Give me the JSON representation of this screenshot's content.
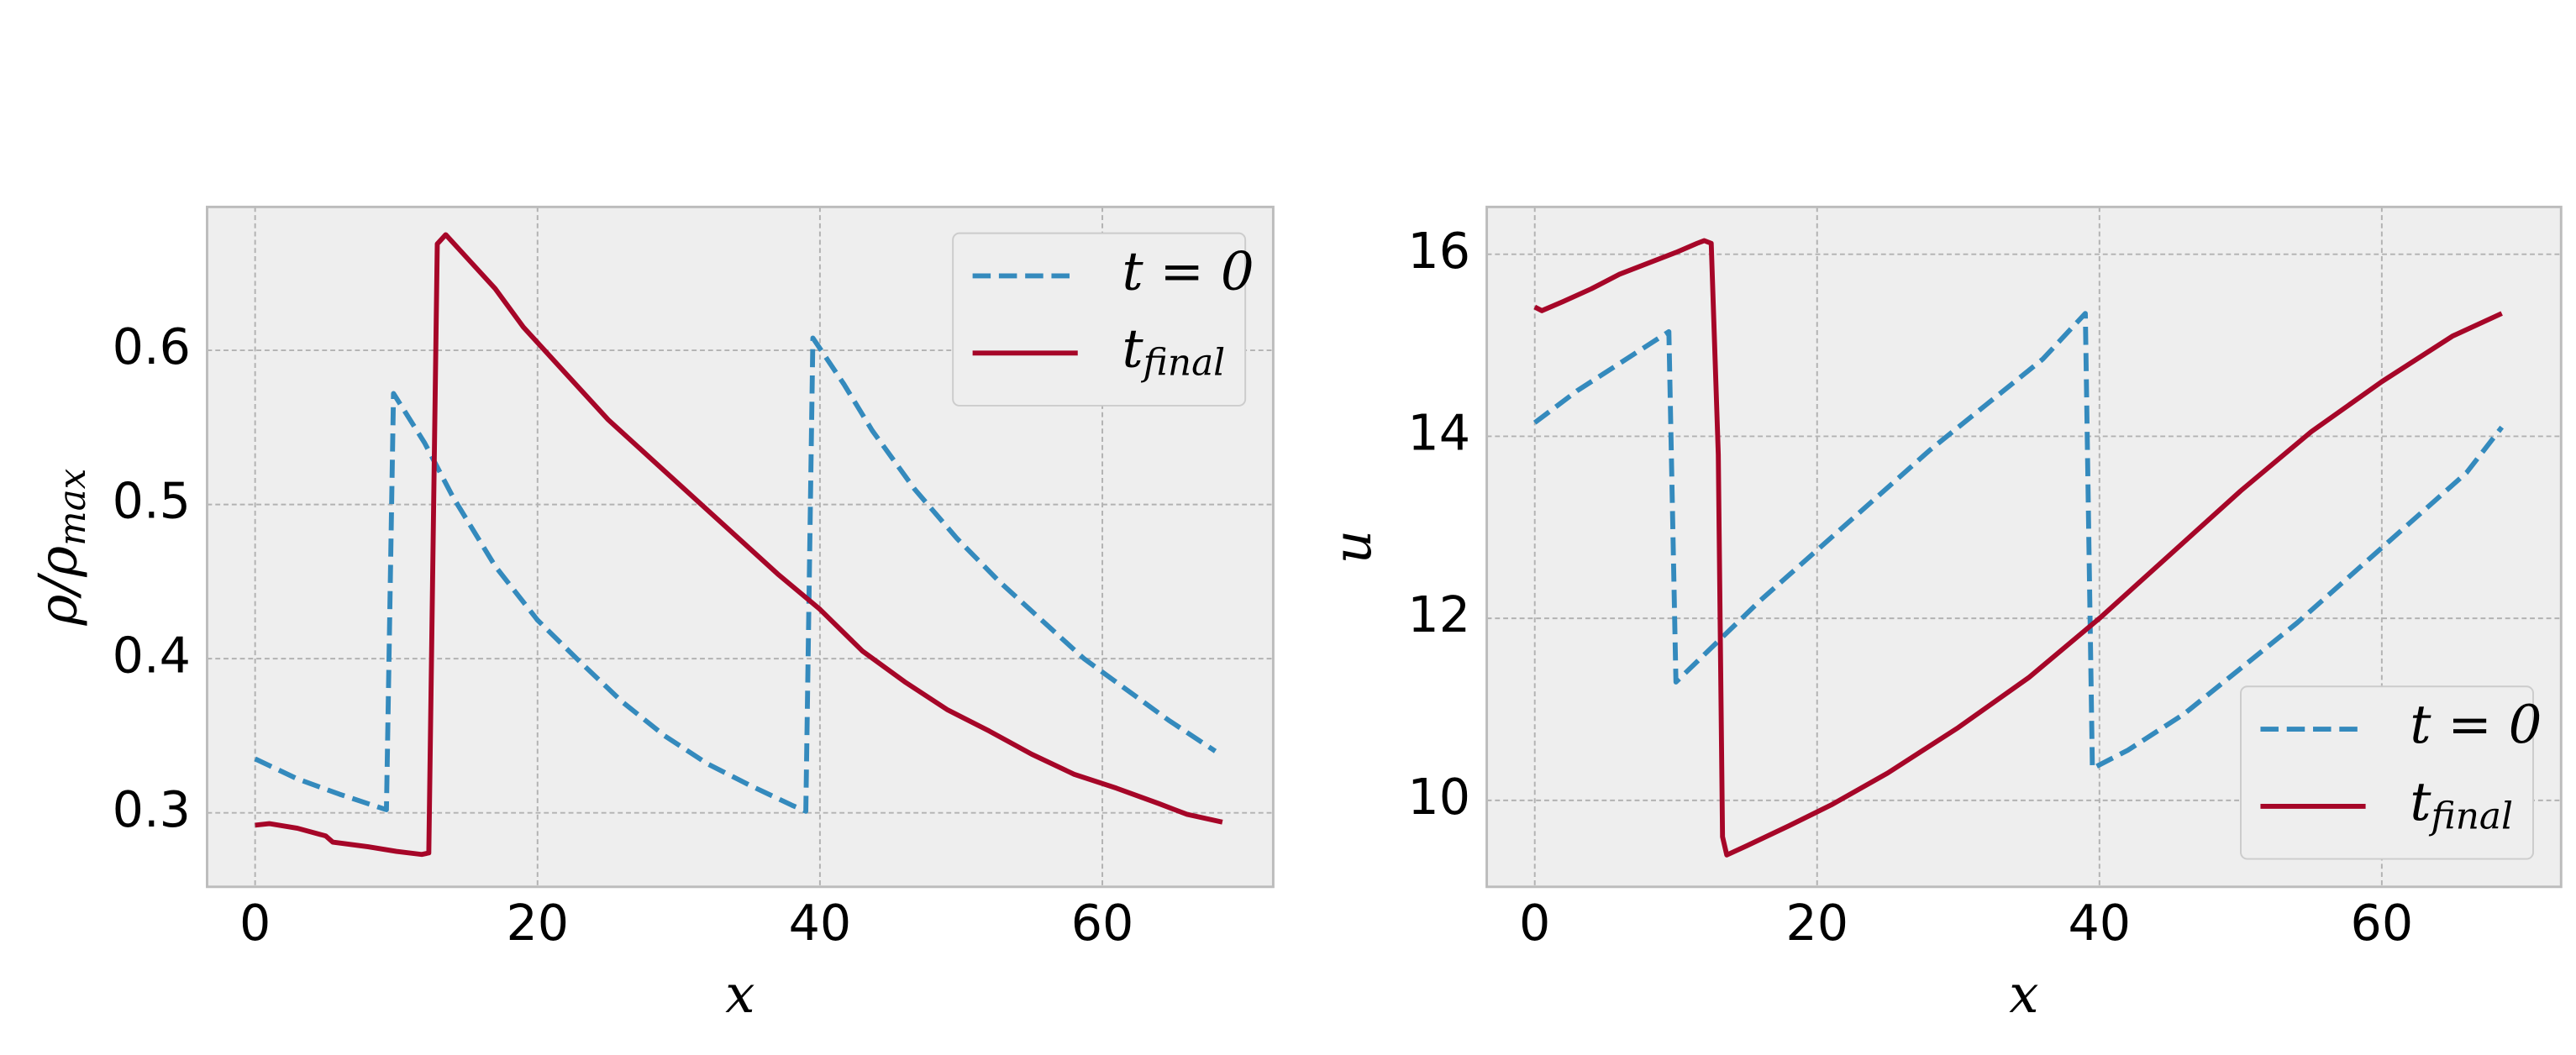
{
  "chart_data": [
    {
      "type": "line",
      "xlabel": "x",
      "ylabel": "ρ/ρ_max",
      "xlim": [
        -3.4,
        72.1
      ],
      "ylim": [
        0.252,
        0.693
      ],
      "xticks": [
        0,
        20,
        40,
        60
      ],
      "yticks": [
        0.3,
        0.4,
        0.5,
        0.6
      ],
      "grid": true,
      "legend": "upper right",
      "series": [
        {
          "name": "t = 0",
          "color": "#348abd",
          "dashed": true,
          "x": [
            0,
            3,
            6,
            9.3,
            9.8,
            12,
            14,
            17,
            20,
            23,
            26,
            29,
            32,
            35,
            38,
            39,
            39.5,
            41.7,
            43.7,
            46.7,
            49.7,
            52.7,
            55.7,
            58.7,
            61.7,
            64.7,
            68
          ],
          "values": [
            0.335,
            0.322,
            0.312,
            0.302,
            0.572,
            0.54,
            0.505,
            0.46,
            0.425,
            0.398,
            0.372,
            0.35,
            0.332,
            0.318,
            0.305,
            0.301,
            0.608,
            0.578,
            0.548,
            0.51,
            0.478,
            0.45,
            0.425,
            0.4,
            0.38,
            0.36,
            0.34
          ]
        },
        {
          "name": "t_final",
          "color": "#a60628",
          "dashed": false,
          "x": [
            0,
            1,
            3,
            5,
            5.5,
            8,
            10,
            11.8,
            12.3,
            12.9,
            13.5,
            15,
            17,
            19,
            22,
            25,
            28,
            31,
            34,
            37,
            40,
            43,
            46,
            49,
            52,
            55,
            58,
            61,
            64,
            66,
            68.5
          ],
          "values": [
            0.292,
            0.293,
            0.29,
            0.285,
            0.281,
            0.278,
            0.275,
            0.273,
            0.274,
            0.669,
            0.675,
            0.66,
            0.64,
            0.615,
            0.585,
            0.555,
            0.53,
            0.505,
            0.48,
            0.455,
            0.432,
            0.405,
            0.385,
            0.367,
            0.353,
            0.338,
            0.325,
            0.316,
            0.306,
            0.299,
            0.294
          ]
        }
      ]
    },
    {
      "type": "line",
      "xlabel": "x",
      "ylabel": "u",
      "xlim": [
        -3.4,
        72.7
      ],
      "ylim": [
        9.05,
        16.52
      ],
      "xticks": [
        0,
        20,
        40,
        60
      ],
      "yticks": [
        10,
        12,
        14,
        16
      ],
      "grid": true,
      "legend": "lower right",
      "series": [
        {
          "name": "t = 0",
          "color": "#348abd",
          "dashed": true,
          "x": [
            0,
            3,
            6,
            9.5,
            10,
            13,
            16,
            20,
            24,
            28,
            32,
            36,
            39,
            39.5,
            42,
            46,
            50,
            54,
            58,
            62,
            66,
            68.5
          ],
          "values": [
            14.15,
            14.5,
            14.8,
            15.15,
            11.3,
            11.75,
            12.2,
            12.75,
            13.3,
            13.85,
            14.35,
            14.85,
            15.35,
            10.35,
            10.55,
            10.95,
            11.45,
            11.95,
            12.5,
            13.05,
            13.6,
            14.1
          ]
        },
        {
          "name": "t_final",
          "color": "#a60628",
          "dashed": false,
          "x": [
            0,
            0.5,
            2,
            4,
            6,
            8,
            10,
            11.5,
            12,
            12.5,
            13,
            13.3,
            13.6,
            15,
            18,
            21,
            25,
            30,
            35,
            40,
            45,
            50,
            55,
            60,
            65,
            68.5
          ],
          "values": [
            15.42,
            15.38,
            15.48,
            15.62,
            15.78,
            15.9,
            16.02,
            16.12,
            16.15,
            16.12,
            13.8,
            9.6,
            9.4,
            9.5,
            9.72,
            9.95,
            10.3,
            10.8,
            11.35,
            12.0,
            12.7,
            13.4,
            14.05,
            14.6,
            15.1,
            15.35
          ]
        }
      ]
    }
  ]
}
